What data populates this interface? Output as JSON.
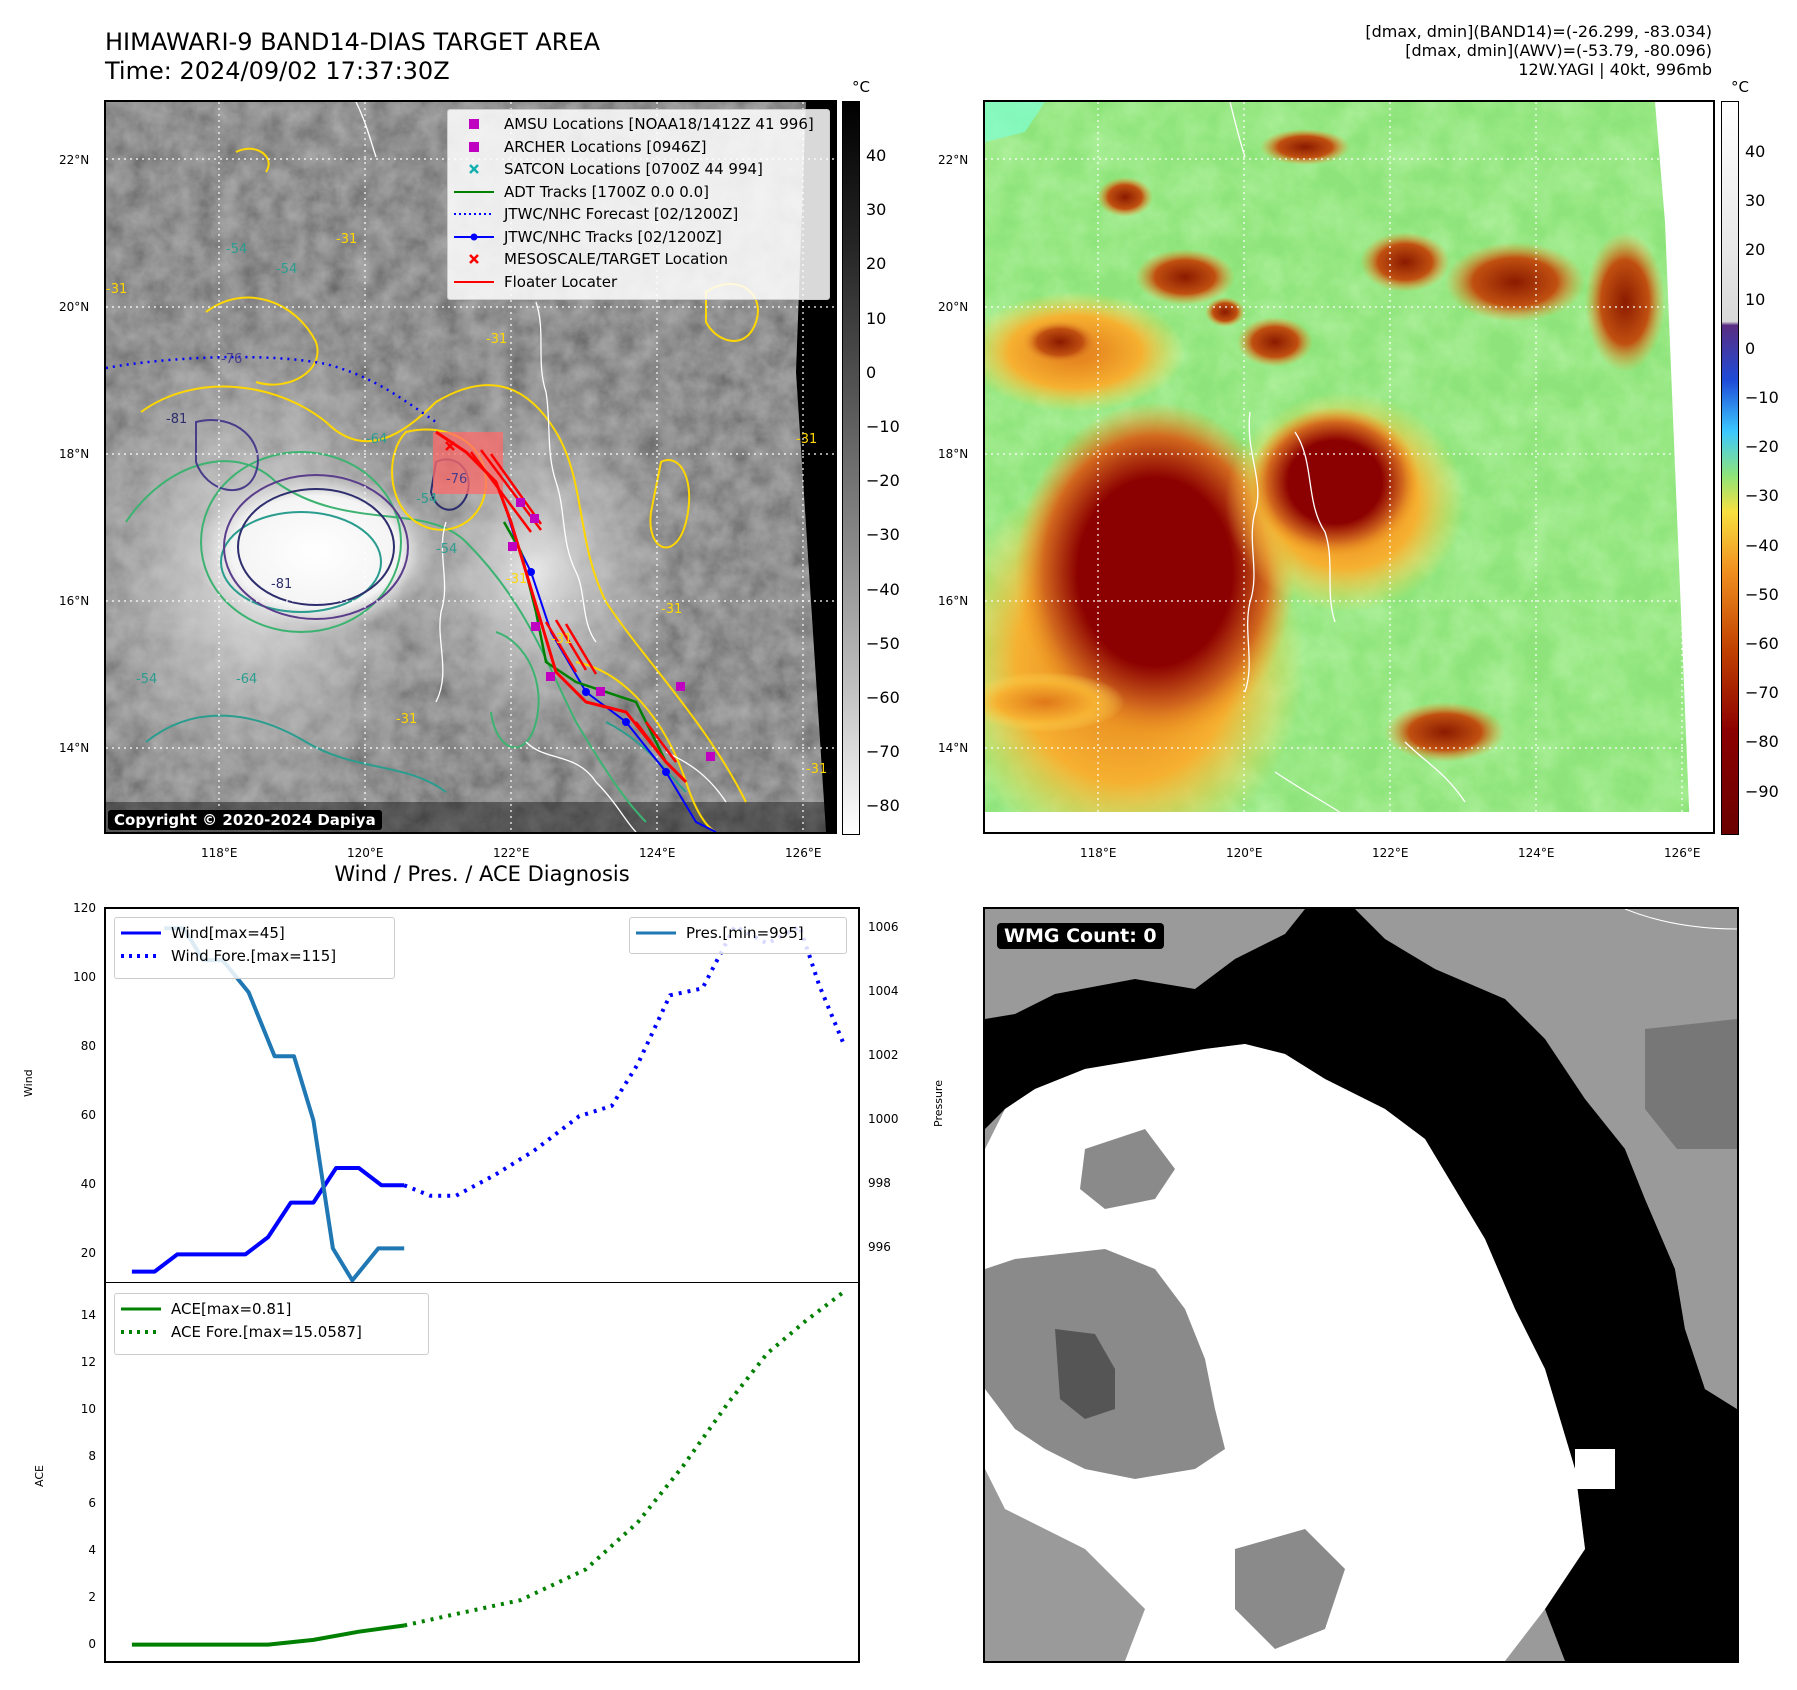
{
  "header": {
    "title_line1": "HIMAWARI-9 BAND14-DIAS TARGET AREA",
    "title_line2": "Time: 2024/09/02 17:37:30Z",
    "info_line1": "[dmax, dmin](BAND14)=(-26.299, -83.034)",
    "info_line2": "[dmax, dmin](AWV)=(-53.79, -80.096)",
    "info_line3": "12W.YAGI | 40kt, 996mb"
  },
  "map_left": {
    "legend": [
      {
        "label": "AMSU Locations [NOAA18/1412Z 41 996]",
        "symbol": "square",
        "color": "#c000c0"
      },
      {
        "label": "ARCHER Locations [0946Z]",
        "symbol": "square",
        "color": "#c000c0"
      },
      {
        "label": "SATCON Locations [0700Z 44 994]",
        "symbol": "x",
        "color": "#10b0b0"
      },
      {
        "label": "ADT Tracks [1700Z 0.0 0.0]",
        "symbol": "line",
        "color": "#008000"
      },
      {
        "label": "JTWC/NHC Forecast [02/1200Z]",
        "symbol": "dotted",
        "color": "#0000ff"
      },
      {
        "label": "JTWC/NHC Tracks [02/1200Z]",
        "symbol": "line-dot",
        "color": "#0000ff"
      },
      {
        "label": "MESOSCALE/TARGET Location",
        "symbol": "x",
        "color": "#ff0000"
      },
      {
        "label": "Floater Locater",
        "symbol": "line",
        "color": "#ff0000"
      }
    ],
    "copyright": "Copyright © 2020-2024 Dapiya",
    "contour_labels": [
      "-54",
      "-54",
      "-31",
      "-76",
      "-81",
      "-81",
      "-64",
      "-54",
      "-64",
      "-31",
      "-31",
      "-31",
      "-31",
      "-76",
      "-54",
      "-31",
      "-31",
      "-31",
      "-31",
      "-54"
    ],
    "colorbar_unit": "°C",
    "colorbar_ticks": [
      "40",
      "30",
      "20",
      "10",
      "0",
      "−10",
      "−20",
      "−30",
      "−40",
      "−50",
      "−60",
      "−70",
      "−80"
    ]
  },
  "map_right": {
    "colorbar_unit": "°C",
    "colorbar_ticks": [
      "40",
      "30",
      "20",
      "10",
      "0",
      "−10",
      "−20",
      "−30",
      "−40",
      "−50",
      "−60",
      "−70",
      "−80",
      "−90"
    ]
  },
  "map_axes": {
    "lat_ticks": [
      "22°N",
      "20°N",
      "18°N",
      "16°N",
      "14°N"
    ],
    "lon_ticks": [
      "118°E",
      "120°E",
      "122°E",
      "124°E",
      "126°E"
    ]
  },
  "wmg": {
    "label": "WMG Count: 0"
  },
  "colors": {
    "wind": "#0000ff",
    "pressure": "#1f77b4",
    "ace": "#008000",
    "floater": "#ff0000"
  },
  "chart_data": [
    {
      "type": "line",
      "title": "Wind / Pres. / ACE Diagnosis",
      "ylabel": "Wind",
      "y2label": "Pressure",
      "ylim": [
        12,
        120
      ],
      "y2lim": [
        994.95,
        1006.6
      ],
      "xlim": [
        -0.4,
        11.2
      ],
      "yticks": [
        "20",
        "40",
        "60",
        "80",
        "100",
        "120"
      ],
      "y2ticks": [
        "996",
        "998",
        "1000",
        "1002",
        "1004",
        "1006"
      ],
      "series": [
        {
          "name": "Wind[max=45]",
          "style": "solid",
          "axis": "left",
          "x": [
            0,
            0.35,
            0.7,
            1.05,
            1.4,
            1.75,
            2.1,
            2.45,
            2.8,
            3.15,
            3.5,
            3.85,
            4.2
          ],
          "y": [
            15,
            15,
            20,
            20,
            20,
            20,
            25,
            35,
            35,
            45,
            45,
            40,
            40
          ]
        },
        {
          "name": "Wind Fore.[max=115]",
          "style": "dotted",
          "axis": "left",
          "x": [
            4.2,
            4.6,
            5.0,
            5.6,
            6.2,
            6.9,
            7.4,
            7.8,
            8.3,
            8.8,
            9.3,
            9.8,
            10.3,
            10.6,
            11.0
          ],
          "y": [
            40,
            37,
            37,
            43,
            50,
            60,
            63,
            75,
            95,
            97,
            115,
            110,
            115,
            98,
            80
          ]
        },
        {
          "name": "Pres.[min=995]",
          "style": "solid",
          "axis": "right",
          "x": [
            0.5,
            0.8,
            1.1,
            1.4,
            1.8,
            2.2,
            2.5,
            2.8,
            3.1,
            3.4,
            3.8,
            4.2
          ],
          "y": [
            1006,
            1006,
            1005,
            1005,
            1004,
            1002,
            1002,
            1000,
            996,
            995,
            996,
            996
          ]
        }
      ]
    },
    {
      "type": "line",
      "ylabel": "ACE",
      "ylim": [
        -0.7,
        15.4
      ],
      "xlim": [
        -0.4,
        11.2
      ],
      "yticks": [
        "0",
        "2",
        "4",
        "6",
        "8",
        "10",
        "12",
        "14"
      ],
      "series": [
        {
          "name": "ACE[max=0.81]",
          "style": "solid",
          "x": [
            0,
            0.7,
            1.4,
            2.1,
            2.8,
            3.5,
            4.2
          ],
          "y": [
            0,
            0,
            0,
            0,
            0.2,
            0.55,
            0.81
          ]
        },
        {
          "name": "ACE Fore.[max=15.0587]",
          "style": "dotted",
          "x": [
            4.2,
            5.0,
            6.0,
            7.0,
            7.8,
            8.5,
            9.2,
            9.8,
            10.4,
            11.0
          ],
          "y": [
            0.81,
            1.3,
            1.9,
            3.2,
            5.2,
            7.6,
            10.3,
            12.4,
            13.8,
            15.06
          ]
        }
      ]
    }
  ]
}
